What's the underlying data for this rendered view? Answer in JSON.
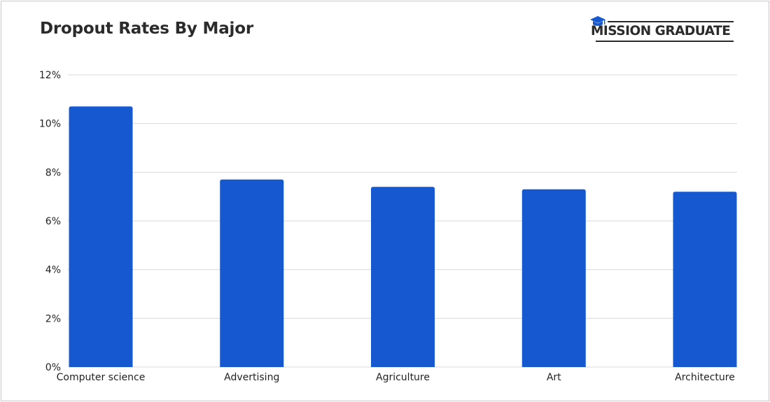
{
  "brand": {
    "name": "MISSION GRADUATE",
    "accent_color": "#2b2b2b",
    "cap_color": "#1558d0",
    "icon": "graduation-cap-icon"
  },
  "chart_data": {
    "type": "bar",
    "title": "Dropout Rates By Major",
    "xlabel": "",
    "ylabel": "",
    "categories": [
      "Computer science",
      "Advertising",
      "Agriculture",
      "Art",
      "Architecture"
    ],
    "values": [
      10.7,
      7.7,
      7.4,
      7.3,
      7.2
    ],
    "unit": "%",
    "ylim": [
      0,
      12
    ],
    "yticks": [
      0,
      2,
      4,
      6,
      8,
      10,
      12
    ],
    "grid": true,
    "legend": "none",
    "bar_color": "#1558d0",
    "grid_color": "#d9d9d9"
  }
}
